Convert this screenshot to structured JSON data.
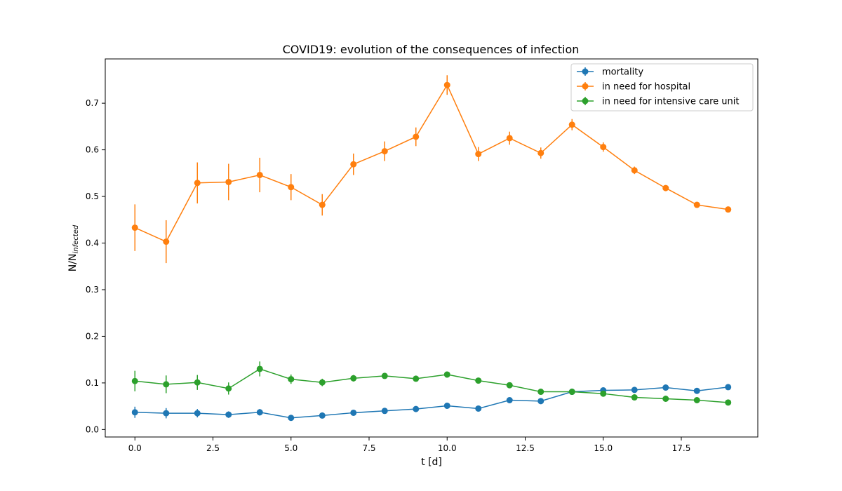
{
  "chart_data": {
    "type": "line",
    "title": "COVID19: evolution of the consequences of infection",
    "xlabel": "t [d]",
    "ylabel": "N/N",
    "ylabel_subscript": "infected",
    "xlim": [
      -0.95,
      19.95
    ],
    "ylim": [
      -0.016,
      0.795
    ],
    "xticks": [
      0.0,
      2.5,
      5.0,
      7.5,
      10.0,
      12.5,
      15.0,
      17.5
    ],
    "xtick_labels": [
      "0.0",
      "2.5",
      "5.0",
      "7.5",
      "10.0",
      "12.5",
      "15.0",
      "17.5"
    ],
    "yticks": [
      0.0,
      0.1,
      0.2,
      0.3,
      0.4,
      0.5,
      0.6,
      0.7
    ],
    "ytick_labels": [
      "0.0",
      "0.1",
      "0.2",
      "0.3",
      "0.4",
      "0.5",
      "0.6",
      "0.7"
    ],
    "grid": false,
    "legend_position": "top-right",
    "x": [
      0,
      1,
      2,
      3,
      4,
      5,
      6,
      7,
      8,
      9,
      10,
      11,
      12,
      13,
      14,
      15,
      16,
      17,
      18,
      19
    ],
    "series": [
      {
        "name": "mortality",
        "color": "#1f77b4",
        "values": [
          0.037,
          0.035,
          0.035,
          0.032,
          0.037,
          0.025,
          0.03,
          0.036,
          0.04,
          0.044,
          0.051,
          0.045,
          0.063,
          0.061,
          0.081,
          0.084,
          0.085,
          0.09,
          0.083,
          0.091
        ],
        "errors": [
          0.012,
          0.011,
          0.009,
          0.007,
          0.007,
          0.005,
          0.005,
          0.005,
          0.004,
          0.004,
          0.004,
          0.004,
          0.004,
          0.003,
          0.003,
          0.003,
          0.003,
          0.003,
          0.003,
          0.003
        ]
      },
      {
        "name": "in need for hospital",
        "color": "#ff7f0e",
        "values": [
          0.433,
          0.403,
          0.529,
          0.531,
          0.546,
          0.52,
          0.482,
          0.569,
          0.597,
          0.628,
          0.739,
          0.591,
          0.625,
          0.593,
          0.654,
          0.606,
          0.556,
          0.518,
          0.482,
          0.472
        ],
        "errors": [
          0.05,
          0.046,
          0.044,
          0.039,
          0.037,
          0.028,
          0.023,
          0.023,
          0.021,
          0.02,
          0.021,
          0.015,
          0.014,
          0.012,
          0.012,
          0.01,
          0.008,
          0.006,
          0.005,
          0.004
        ]
      },
      {
        "name": "in need for intensive care unit",
        "color": "#2ca02c",
        "values": [
          0.104,
          0.097,
          0.101,
          0.088,
          0.13,
          0.108,
          0.101,
          0.11,
          0.115,
          0.109,
          0.118,
          0.105,
          0.095,
          0.081,
          0.081,
          0.077,
          0.069,
          0.066,
          0.063,
          0.058
        ],
        "errors": [
          0.022,
          0.019,
          0.016,
          0.013,
          0.016,
          0.01,
          0.008,
          0.007,
          0.006,
          0.005,
          0.005,
          0.004,
          0.004,
          0.004,
          0.003,
          0.003,
          0.003,
          0.003,
          0.003,
          0.003
        ]
      }
    ]
  }
}
